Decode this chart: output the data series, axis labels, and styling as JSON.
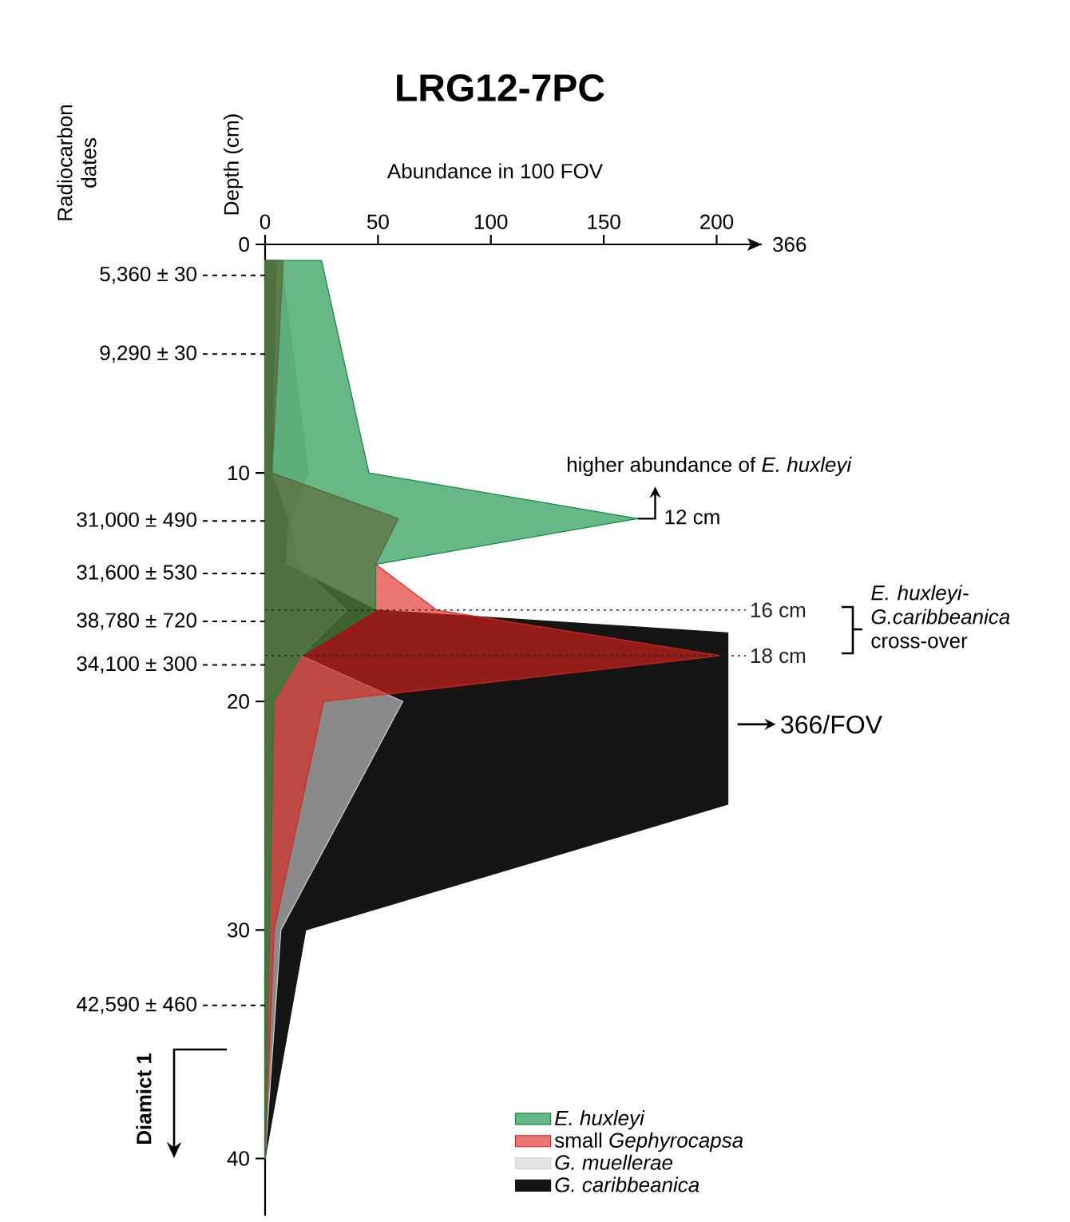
{
  "chart_data": {
    "type": "area",
    "orientation": "horizontal",
    "title": "LRG12-7PC",
    "xlabel": "Abundance in 100 FOV",
    "ylabel": "Depth (cm)",
    "x": [
      0.7,
      10,
      12,
      14,
      16,
      18,
      20,
      30,
      40
    ],
    "series": [
      {
        "name": "*E. huxleyi*",
        "color": "#0a8a3e",
        "values": [
          25,
          46,
          165,
          49,
          49,
          16,
          4,
          2,
          0
        ]
      },
      {
        "name": "small *Gephyrocapsa*",
        "color": "#e0221c",
        "values": [
          8,
          3,
          59,
          49,
          76,
          202,
          26,
          4,
          0
        ]
      },
      {
        "name": "*G. muellerae*",
        "color": "#d2d2d2",
        "values": [
          7,
          19,
          11,
          14,
          36,
          16,
          61,
          7,
          0
        ]
      },
      {
        "name": "*G. caribbeanica*",
        "color": "#151515",
        "x": [
          0.7,
          10,
          12,
          14,
          16,
          17,
          24.5,
          30,
          40
        ],
        "values": [
          5,
          3,
          10,
          9,
          49,
          205,
          205,
          18,
          0
        ]
      }
    ],
    "xlim": [
      0,
      220
    ],
    "xticks": [
      0,
      50,
      100,
      150,
      200
    ],
    "ylim": [
      42.5,
      0
    ],
    "yticks": [
      0,
      10,
      20,
      30,
      40
    ],
    "legend": "bottom right",
    "ref_lines": [
      {
        "axis": "y",
        "value": 16,
        "label": "16 cm",
        "color": "#222222",
        "line_style": "dotted"
      },
      {
        "axis": "y",
        "value": 18,
        "label": "18 cm",
        "color": "#222222",
        "line_style": "dotted"
      }
    ],
    "annotations": [
      "higher abundance of *E. huxleyi*",
      {
        "text": "12 cm",
        "x": 165,
        "y": 12
      },
      "*E. huxleyi*- *G.caribbeanica* cross-over",
      {
        "text": "366/FOV",
        "x": 205,
        "y": 21
      },
      "Diamict 1",
      "Radiocarbon dates",
      "366",
      {
        "text": "5,360 ± 30",
        "x": 0,
        "y": 1.35
      },
      {
        "text": "9,290 ± 30",
        "x": 0,
        "y": 4.8
      },
      {
        "text": "31,000 ± 490",
        "x": 0,
        "y": 12.1
      },
      {
        "text": "31,600 ± 530",
        "x": 0,
        "y": 14.4
      },
      {
        "text": "38,780 ± 720",
        "x": 0,
        "y": 16.5
      },
      {
        "text": "34,100 ± 300",
        "x": 0,
        "y": 18.4
      },
      {
        "text": "42,590 ± 460",
        "x": 0,
        "y": 33.3
      }
    ]
  }
}
